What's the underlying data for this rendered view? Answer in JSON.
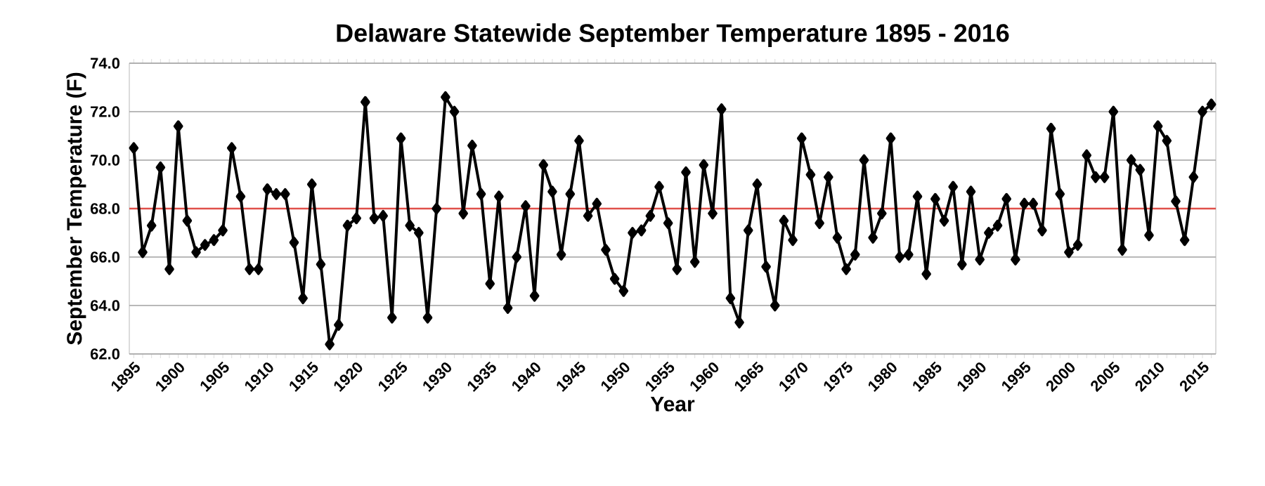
{
  "chart_data": {
    "type": "line",
    "title": "Delaware Statewide September Temperature 1895 - 2016",
    "xlabel": "Year",
    "ylabel": "September Temperature (F)",
    "categories": [
      "1895",
      null,
      null,
      null,
      null,
      "1900",
      null,
      null,
      null,
      null,
      "1905",
      null,
      null,
      null,
      null,
      "1910",
      null,
      null,
      null,
      null,
      "1915",
      null,
      null,
      null,
      null,
      "1920",
      null,
      null,
      null,
      null,
      "1925",
      null,
      null,
      null,
      null,
      "1930",
      null,
      null,
      null,
      null,
      "1935",
      null,
      null,
      null,
      null,
      "1940",
      null,
      null,
      null,
      null,
      "1945",
      null,
      null,
      null,
      null,
      "1950",
      null,
      null,
      null,
      null,
      "1955",
      null,
      null,
      null,
      null,
      "1960",
      null,
      null,
      null,
      null,
      "1965",
      null,
      null,
      null,
      null,
      "1970",
      null,
      null,
      null,
      null,
      "1975",
      null,
      null,
      null,
      null,
      "1980",
      null,
      null,
      null,
      null,
      "1985",
      null,
      null,
      null,
      null,
      "1990",
      null,
      null,
      null,
      null,
      "1995",
      null,
      null,
      null,
      null,
      "2000",
      null,
      null,
      null,
      null,
      "2005",
      null,
      null,
      null,
      null,
      "2010",
      null,
      null,
      null,
      null,
      "2015",
      null
    ],
    "series": [
      {
        "color": "#000000",
        "values": [
          70.5,
          66.2,
          67.3,
          69.7,
          65.5,
          71.4,
          67.5,
          66.2,
          66.5,
          66.7,
          67.1,
          70.5,
          68.5,
          65.5,
          65.5,
          68.8,
          68.6,
          68.6,
          66.6,
          64.3,
          69.0,
          65.7,
          62.4,
          63.2,
          67.3,
          67.6,
          72.4,
          67.6,
          67.7,
          63.5,
          70.9,
          67.3,
          67.0,
          63.5,
          68.0,
          72.6,
          72.0,
          67.8,
          70.6,
          68.6,
          64.9,
          68.5,
          63.9,
          66.0,
          68.1,
          64.4,
          69.8,
          68.7,
          66.1,
          68.6,
          70.8,
          67.7,
          68.2,
          66.3,
          65.1,
          64.6,
          67.0,
          67.1,
          67.7,
          68.9,
          67.4,
          65.5,
          69.5,
          65.8,
          69.8,
          67.8,
          72.1,
          64.3,
          63.3,
          67.1,
          69.0,
          65.6,
          64.0,
          67.5,
          66.7,
          70.9,
          69.4,
          67.4,
          69.3,
          66.8,
          65.5,
          66.1,
          70.0,
          66.8,
          67.8,
          70.9,
          66.0,
          66.1,
          68.5,
          65.3,
          68.4,
          67.5,
          68.9,
          65.7,
          68.7,
          65.9,
          67.0,
          67.3,
          68.4,
          65.9,
          68.2,
          68.2,
          67.1,
          71.3,
          68.6,
          66.2,
          66.5,
          70.2,
          69.3,
          69.3,
          72.0,
          66.3,
          70.0,
          69.6,
          66.9,
          71.4,
          70.8,
          68.3,
          66.7,
          69.3,
          72.0,
          72.3
        ]
      }
    ],
    "ylim": [
      62,
      74
    ],
    "yticks": [
      {
        "value": 62,
        "label": "62.0"
      },
      {
        "value": 64,
        "label": "64.0"
      },
      {
        "value": 66,
        "label": "66.0"
      },
      {
        "value": 68,
        "label": "68.0"
      },
      {
        "value": 70,
        "label": "70.0"
      },
      {
        "value": 72,
        "label": "72.0"
      },
      {
        "value": 74,
        "label": "74.0"
      }
    ],
    "ref_lines": [
      {
        "axis": "y",
        "value": 68,
        "color": "#e0504a"
      }
    ],
    "grid": "y",
    "marker": "diamond",
    "line_style": "solid"
  }
}
